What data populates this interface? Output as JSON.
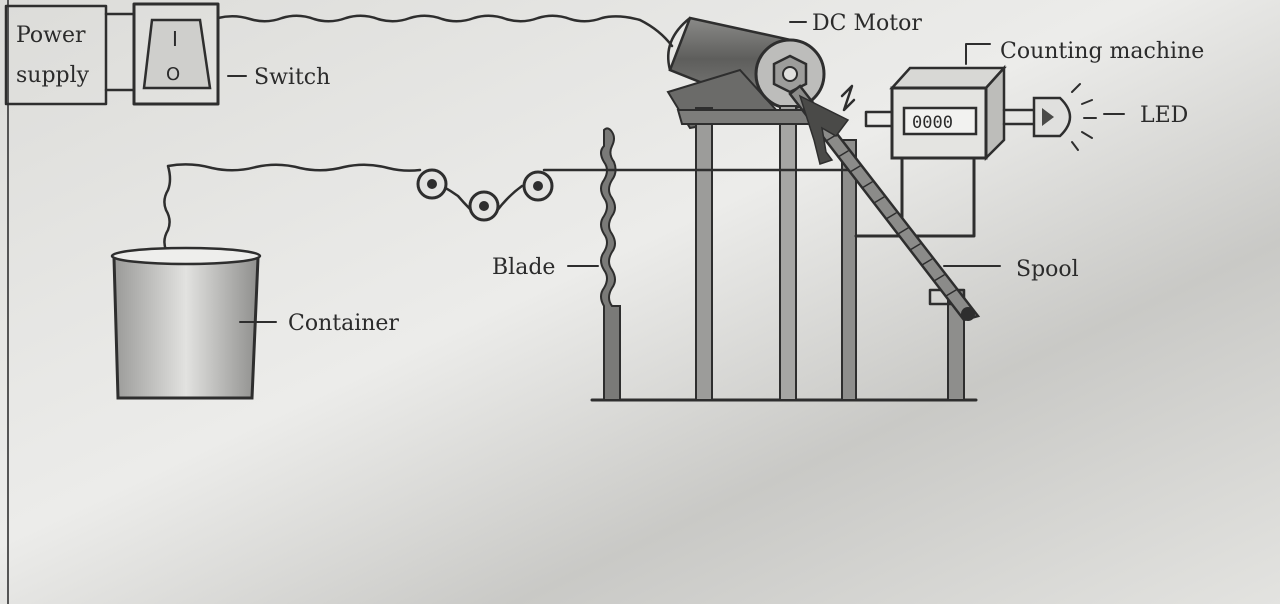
{
  "labels": {
    "power_supply_line1": "Power",
    "power_supply_line2": "supply",
    "switch_top": "I",
    "switch_bottom": "O",
    "switch": "Switch",
    "dc_motor": "DC Motor",
    "counting_machine": "Counting machine",
    "counter_digits": "0000",
    "led": "LED",
    "blade": "Blade",
    "container": "Container",
    "spool": "Spool"
  }
}
